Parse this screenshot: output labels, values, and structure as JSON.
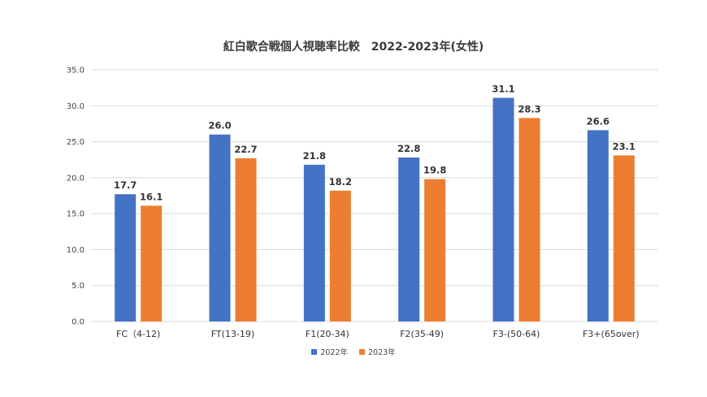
{
  "chart_data": {
    "type": "bar",
    "title": "紅白歌合戦個人視聴率比較　2022-2023年(女性)",
    "categories": [
      "FC（4-12)",
      "FT(13-19)",
      "F1(20-34)",
      "F2(35-49)",
      "F3-(50-64)",
      "F3+(65over)"
    ],
    "series": [
      {
        "name": "2022年",
        "color": "#4472C4",
        "values": [
          17.7,
          26.0,
          21.8,
          22.8,
          31.1,
          26.6
        ],
        "labels": [
          "17.7",
          "26.0",
          "21.8",
          "22.8",
          "31.1",
          "26.6"
        ]
      },
      {
        "name": "2023年",
        "color": "#ED7D31",
        "values": [
          16.1,
          22.7,
          18.2,
          19.8,
          28.3,
          23.1
        ],
        "labels": [
          "16.1",
          "22.7",
          "18.2",
          "19.8",
          "28.3",
          "23.1"
        ]
      }
    ],
    "ylim": [
      0,
      35
    ],
    "yticks": [
      "0.0",
      "5.0",
      "10.0",
      "15.0",
      "20.0",
      "25.0",
      "30.0",
      "35.0"
    ],
    "grid": true,
    "legend": "bottom"
  }
}
